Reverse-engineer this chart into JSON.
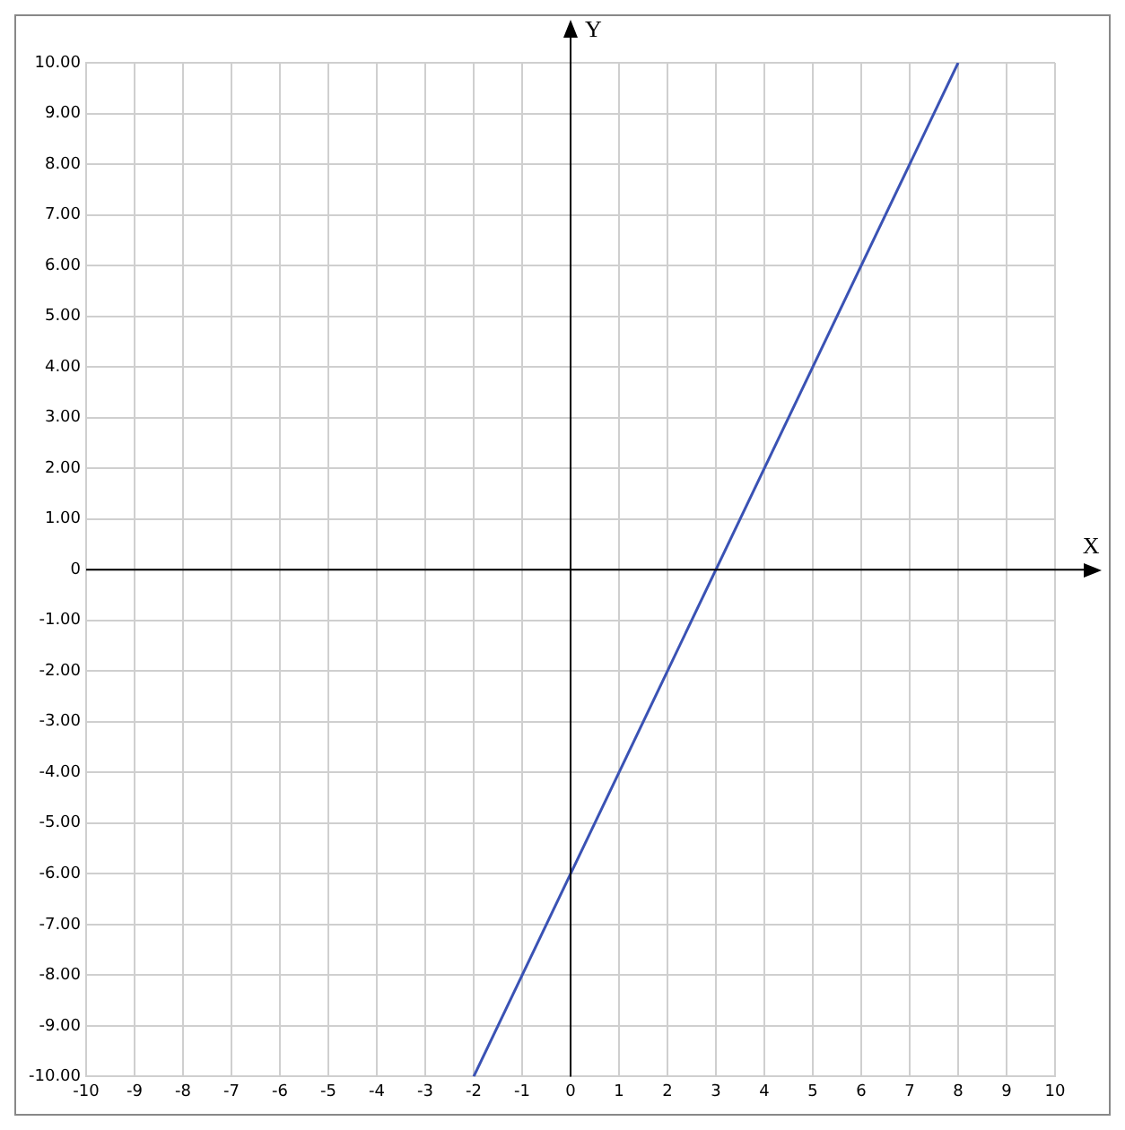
{
  "chart_data": {
    "type": "line",
    "xlabel": "X",
    "ylabel": "Y",
    "series": [
      {
        "color": "#3a52b4",
        "x": [
          -2,
          8
        ],
        "values": [
          -10,
          10
        ]
      }
    ],
    "xlim": [
      -10,
      10
    ],
    "ylim": [
      -10,
      10
    ],
    "xticks": [
      -10,
      -9,
      -8,
      -7,
      -6,
      -5,
      -4,
      -3,
      -2,
      -1,
      0,
      1,
      2,
      3,
      4,
      5,
      6,
      7,
      8,
      9,
      10
    ],
    "yticks": [
      {
        "value": -10,
        "label": "-10.00"
      },
      {
        "value": -9,
        "label": "-9.00"
      },
      {
        "value": -8,
        "label": "-8.00"
      },
      {
        "value": -7,
        "label": "-7.00"
      },
      {
        "value": -6,
        "label": "-6.00"
      },
      {
        "value": -5,
        "label": "-5.00"
      },
      {
        "value": -4,
        "label": "-4.00"
      },
      {
        "value": -3,
        "label": "-3.00"
      },
      {
        "value": -2,
        "label": "-2.00"
      },
      {
        "value": -1,
        "label": "-1.00"
      },
      0,
      {
        "value": 1,
        "label": "1.00"
      },
      {
        "value": 2,
        "label": "2.00"
      },
      {
        "value": 3,
        "label": "3.00"
      },
      {
        "value": 4,
        "label": "4.00"
      },
      {
        "value": 5,
        "label": "5.00"
      },
      {
        "value": 6,
        "label": "6.00"
      },
      {
        "value": 7,
        "label": "7.00"
      },
      {
        "value": 8,
        "label": "8.00"
      },
      {
        "value": 9,
        "label": "9.00"
      },
      {
        "value": 10,
        "label": "10.00"
      }
    ],
    "grid": true,
    "legend": false,
    "marker": "none",
    "line_style": "solid"
  }
}
